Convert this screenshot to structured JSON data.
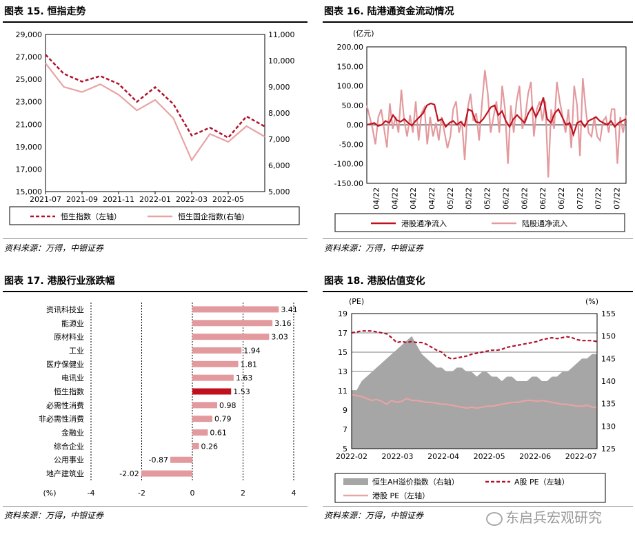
{
  "panel15": {
    "title": "图表 15. 恒指走势",
    "source": "资料来源：万得，中银证券",
    "chart_data": {
      "type": "line",
      "x_ticks": [
        "2021-07",
        "2021-09",
        "2021-11",
        "2022-01",
        "2022-03",
        "2022-05"
      ],
      "y_left_ticks": [
        "15,000",
        "17,000",
        "19,000",
        "21,000",
        "23,000",
        "25,000",
        "27,000",
        "29,000"
      ],
      "y_right_ticks": [
        "5,000",
        "6,000",
        "7,000",
        "8,000",
        "9,000",
        "10,000",
        "11,000"
      ],
      "ylim_left": [
        15000,
        29000
      ],
      "ylim_right": [
        5000,
        11000
      ],
      "xlim": [
        "2021-07",
        "2022-07"
      ],
      "series": [
        {
          "name": "恒生指数（左轴）",
          "axis": "left",
          "color": "#b0122c",
          "style": "dashed",
          "x": [
            "2021-07",
            "2021-08",
            "2021-09",
            "2021-10",
            "2021-11",
            "2021-12",
            "2022-01",
            "2022-02",
            "2022-03",
            "2022-04",
            "2022-05",
            "2022-06",
            "2022-07"
          ],
          "values": [
            27200,
            25500,
            24800,
            25300,
            24600,
            23000,
            24300,
            22800,
            20000,
            20700,
            19800,
            21700,
            20800
          ]
        },
        {
          "name": "恒生国企指数(右轴)",
          "axis": "right",
          "color": "#e8a3a3",
          "style": "solid",
          "x": [
            "2021-07",
            "2021-08",
            "2021-09",
            "2021-10",
            "2021-11",
            "2021-12",
            "2022-01",
            "2022-02",
            "2022-03",
            "2022-04",
            "2022-05",
            "2022-06",
            "2022-07"
          ],
          "values": [
            9900,
            9000,
            8800,
            9100,
            8700,
            8100,
            8500,
            7800,
            6200,
            7200,
            6900,
            7500,
            7100
          ]
        }
      ]
    }
  },
  "panel16": {
    "title": "图表 16. 陆港通资金流动情况",
    "unit": "(亿元)",
    "source": "资料来源：万得，中银证券",
    "chart_data": {
      "type": "line",
      "x_ticks": [
        "04/22",
        "04/22",
        "04/22",
        "04/22",
        "05/22",
        "05/22",
        "05/22",
        "06/22",
        "06/22",
        "06/22",
        "06/22",
        "07/22",
        "07/22",
        "07/22"
      ],
      "y_ticks": [
        "-150.00",
        "-100.00",
        "-50.00",
        "0.00",
        "50.00",
        "100.00",
        "150.00",
        "200.00"
      ],
      "ylim": [
        -150,
        200
      ],
      "series": [
        {
          "name": "港股通净流入",
          "color": "#c0101e",
          "values": [
            0,
            2,
            5,
            -3,
            0,
            10,
            5,
            25,
            12,
            8,
            15,
            5,
            -2,
            10,
            20,
            30,
            50,
            55,
            52,
            10,
            15,
            -5,
            5,
            10,
            0,
            8,
            -3,
            40,
            35,
            8,
            5,
            15,
            30,
            45,
            50,
            25,
            35,
            10,
            -5,
            15,
            25,
            15,
            5,
            30,
            45,
            20,
            40,
            70,
            15,
            5,
            30,
            40,
            20,
            0,
            5,
            -25,
            5,
            10,
            -5,
            10,
            15,
            20,
            10,
            5,
            0,
            10,
            -5,
            5,
            10,
            15
          ]
        },
        {
          "name": "陆股通净流入",
          "color": "#e39a9e",
          "values": [
            50,
            20,
            -10,
            -50,
            20,
            40,
            -10,
            -58,
            55,
            -10,
            20,
            -20,
            90,
            10,
            -30,
            25,
            -20,
            60,
            -40,
            30,
            45,
            -50,
            20,
            -30,
            5,
            -40,
            20,
            -20,
            -60,
            -30,
            40,
            60,
            -20,
            10,
            -90,
            40,
            80,
            10,
            30,
            -40,
            55,
            140,
            80,
            -20,
            20,
            60,
            -20,
            100,
            40,
            -100,
            50,
            -20,
            60,
            100,
            -10,
            20,
            80,
            110,
            -30,
            40,
            60,
            10,
            60,
            -135,
            40,
            -10,
            110,
            60,
            20,
            -20,
            40,
            -60,
            100,
            50,
            -80,
            120,
            40,
            -20,
            -30,
            20,
            -30,
            -40,
            10,
            20,
            -20,
            40,
            40,
            -100,
            20,
            -20,
            25
          ]
        }
      ]
    }
  },
  "panel17": {
    "title": "图表 17. 港股行业涨跌幅",
    "source": "资料来源：万得，中银证券",
    "unit_label": "(%)",
    "chart_data": {
      "type": "bar",
      "orientation": "horizontal",
      "categories": [
        "资讯科技业",
        "能源业",
        "原材料业",
        "工业",
        "医疗保健业",
        "电讯业",
        "恒生指数",
        "必需性消费",
        "非必需性消费",
        "金融业",
        "综合企业",
        "公用事业",
        "地产建筑业"
      ],
      "values": [
        3.41,
        3.16,
        3.03,
        1.94,
        1.81,
        1.63,
        1.53,
        0.98,
        0.79,
        0.61,
        0.26,
        -0.87,
        -2.02
      ],
      "value_labels": [
        "3.41",
        "3.16",
        "3.03",
        "1.94",
        "1.81",
        "1.63",
        "1.53",
        "0.98",
        "0.79",
        "0.61",
        "0.26",
        "-0.87",
        "-2.02"
      ],
      "highlight": "恒生指数",
      "bar_color": "#e39a9e",
      "highlight_color": "#c0101e",
      "xlim": [
        -4,
        4
      ],
      "x_ticks": [
        "-4",
        "-2",
        "0",
        "2",
        "4"
      ]
    }
  },
  "panel18": {
    "title": "图表 18. 港股估值变化",
    "left_unit": "(PE)",
    "right_unit": "(%)",
    "source": "资料来源：万得，中银证券",
    "chart_data": {
      "type": "area",
      "x_ticks": [
        "2022-02",
        "2022-03",
        "2022-04",
        "2022-05",
        "2022-06",
        "2022-07"
      ],
      "xlim": [
        "2022-02",
        "2022-07"
      ],
      "y_left_ticks": [
        "5",
        "7",
        "9",
        "11",
        "13",
        "15",
        "17",
        "19"
      ],
      "y_right_ticks": [
        "125",
        "130",
        "135",
        "140",
        "145",
        "150",
        "155"
      ],
      "ylim_left": [
        5,
        19
      ],
      "ylim_right": [
        125,
        155
      ],
      "series": [
        {
          "name": "恒生AH溢价指数（右轴）",
          "axis": "right",
          "color": "#a6a6a6",
          "style": "area",
          "values": [
            138,
            138,
            140,
            141,
            142,
            143,
            144,
            145,
            146,
            147,
            148,
            149,
            150,
            148,
            146,
            145,
            144,
            143,
            143,
            142,
            142,
            143,
            143,
            142,
            142,
            141,
            142,
            142,
            141,
            141,
            140,
            141,
            141,
            140,
            140,
            140,
            141,
            141,
            140,
            140,
            141,
            141,
            142,
            142,
            143,
            144,
            145,
            145,
            146,
            146
          ]
        },
        {
          "name": "A股 PE（左轴）",
          "axis": "left",
          "color": "#b0122c",
          "style": "dashed",
          "values": [
            17.0,
            17.1,
            17.2,
            17.2,
            17.2,
            17.1,
            17.0,
            16.9,
            16.5,
            16.0,
            16.1,
            16.0,
            16.1,
            16.0,
            16.0,
            15.8,
            15.5,
            15.2,
            15.0,
            14.5,
            14.3,
            14.4,
            14.5,
            14.6,
            14.8,
            14.9,
            15.0,
            15.1,
            15.2,
            15.2,
            15.3,
            15.5,
            15.6,
            15.7,
            15.8,
            15.9,
            16.0,
            16.1,
            16.3,
            16.4,
            16.5,
            16.4,
            16.5,
            16.6,
            16.5,
            16.3,
            16.2,
            16.2,
            16.2,
            16.1
          ]
        },
        {
          "name": "港股 PE（左轴）",
          "axis": "left",
          "color": "#e8a3a3",
          "style": "solid",
          "values": [
            10.6,
            10.5,
            10.4,
            10.2,
            10.0,
            10.1,
            9.9,
            9.6,
            10.0,
            9.8,
            9.9,
            10.2,
            10.0,
            10.0,
            9.9,
            9.8,
            9.8,
            9.7,
            9.6,
            9.6,
            9.5,
            9.4,
            9.3,
            9.2,
            9.3,
            9.2,
            9.3,
            9.4,
            9.4,
            9.5,
            9.6,
            9.7,
            9.8,
            9.8,
            9.9,
            10.0,
            10.0,
            9.9,
            10.0,
            9.9,
            9.8,
            9.7,
            9.6,
            9.6,
            9.5,
            9.4,
            9.4,
            9.5,
            9.3,
            9.3
          ]
        }
      ]
    }
  },
  "watermark": "东启兵宏观研究"
}
